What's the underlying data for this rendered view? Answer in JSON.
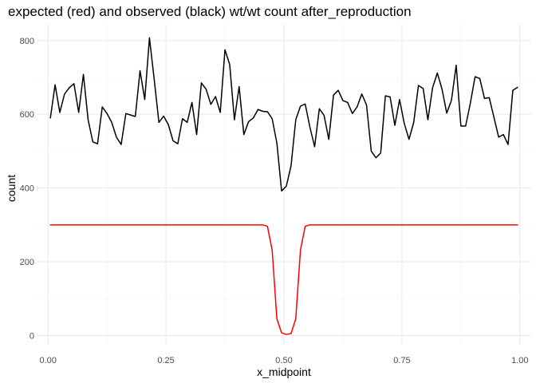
{
  "chart_data": {
    "type": "line",
    "title": "expected (red) and observed (black) wt/wt count after_reproduction",
    "xlabel": "x_midpoint",
    "ylabel": "count",
    "xlim": [
      -0.024,
      1.024
    ],
    "ylim": [
      -25,
      845
    ],
    "x_ticks": [
      0.0,
      0.25,
      0.5,
      0.75,
      1.0
    ],
    "x_tick_labels": [
      "0.00",
      "0.25",
      "0.50",
      "0.75",
      "1.00"
    ],
    "y_ticks": [
      0,
      200,
      400,
      600,
      800
    ],
    "y_tick_labels": [
      "0",
      "200",
      "400",
      "600",
      "800"
    ],
    "grid": true,
    "x": [
      0.005,
      0.015,
      0.025,
      0.035,
      0.045,
      0.055,
      0.065,
      0.075,
      0.085,
      0.095,
      0.105,
      0.115,
      0.125,
      0.135,
      0.145,
      0.155,
      0.165,
      0.175,
      0.185,
      0.195,
      0.205,
      0.215,
      0.225,
      0.235,
      0.245,
      0.255,
      0.265,
      0.275,
      0.285,
      0.295,
      0.305,
      0.315,
      0.325,
      0.335,
      0.345,
      0.355,
      0.365,
      0.375,
      0.385,
      0.395,
      0.405,
      0.415,
      0.425,
      0.435,
      0.445,
      0.455,
      0.465,
      0.475,
      0.485,
      0.495,
      0.505,
      0.515,
      0.525,
      0.535,
      0.545,
      0.555,
      0.565,
      0.575,
      0.585,
      0.595,
      0.605,
      0.615,
      0.625,
      0.635,
      0.645,
      0.655,
      0.665,
      0.675,
      0.685,
      0.695,
      0.705,
      0.715,
      0.725,
      0.735,
      0.745,
      0.755,
      0.765,
      0.775,
      0.785,
      0.795,
      0.805,
      0.815,
      0.825,
      0.835,
      0.845,
      0.855,
      0.865,
      0.875,
      0.885,
      0.895,
      0.905,
      0.915,
      0.925,
      0.935,
      0.945,
      0.955,
      0.965,
      0.975,
      0.985,
      0.995
    ],
    "series": [
      {
        "name": "observed",
        "color": "#000000",
        "values": [
          590,
          680,
          605,
          655,
          672,
          683,
          605,
          708,
          585,
          525,
          520,
          620,
          602,
          578,
          538,
          518,
          602,
          598,
          594,
          718,
          640,
          807,
          695,
          578,
          595,
          572,
          528,
          520,
          588,
          578,
          632,
          545,
          685,
          668,
          627,
          648,
          605,
          775,
          735,
          585,
          675,
          545,
          580,
          590,
          613,
          608,
          607,
          588,
          522,
          392,
          405,
          460,
          585,
          622,
          628,
          565,
          512,
          615,
          597,
          532,
          652,
          665,
          637,
          632,
          602,
          620,
          655,
          625,
          500,
          482,
          495,
          650,
          647,
          570,
          640,
          575,
          532,
          578,
          678,
          670,
          585,
          672,
          712,
          668,
          603,
          638,
          733,
          568,
          568,
          630,
          702,
          697,
          643,
          645,
          592,
          538,
          545,
          518,
          665,
          673
        ]
      },
      {
        "name": "expected",
        "color": "#ff0000",
        "values": [
          300,
          300,
          300,
          300,
          300,
          300,
          300,
          300,
          300,
          300,
          300,
          300,
          300,
          300,
          300,
          300,
          300,
          300,
          300,
          300,
          300,
          300,
          300,
          300,
          300,
          300,
          300,
          300,
          300,
          300,
          300,
          300,
          300,
          300,
          300,
          300,
          300,
          300,
          300,
          300,
          300,
          300,
          300,
          300,
          300,
          300,
          296,
          232,
          45,
          7,
          3,
          5,
          45,
          232,
          296,
          300,
          300,
          300,
          300,
          300,
          300,
          300,
          300,
          300,
          300,
          300,
          300,
          300,
          300,
          300,
          300,
          300,
          300,
          300,
          300,
          300,
          300,
          300,
          300,
          300,
          300,
          300,
          300,
          300,
          300,
          300,
          300,
          300,
          300,
          300,
          300,
          300,
          300,
          300,
          300,
          300,
          300,
          300,
          300,
          300
        ]
      }
    ]
  }
}
